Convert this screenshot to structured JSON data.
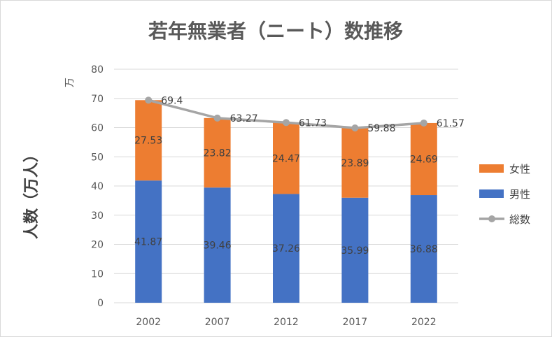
{
  "chart_data": {
    "type": "bar",
    "stacked": true,
    "title": "若年無業者（ニート）数推移",
    "ylabel": "人数（万人）",
    "unit_label": "万",
    "xlabel": "",
    "ylim": [
      0,
      80
    ],
    "yticks": [
      0,
      10,
      20,
      30,
      40,
      50,
      60,
      70,
      80
    ],
    "grid": true,
    "legend_position": "right",
    "categories": [
      "2002",
      "2007",
      "2012",
      "2017",
      "2022"
    ],
    "series": [
      {
        "name": "男性",
        "type": "bar",
        "color": "#4472c4",
        "values": [
          41.87,
          39.46,
          37.26,
          35.99,
          36.88
        ]
      },
      {
        "name": "女性",
        "type": "bar",
        "color": "#ed7d31",
        "values": [
          27.53,
          23.82,
          24.47,
          23.89,
          24.69
        ]
      },
      {
        "name": "総数",
        "type": "line",
        "color": "#a5a5a5",
        "values": [
          69.4,
          63.27,
          61.73,
          59.88,
          61.57
        ]
      }
    ]
  }
}
